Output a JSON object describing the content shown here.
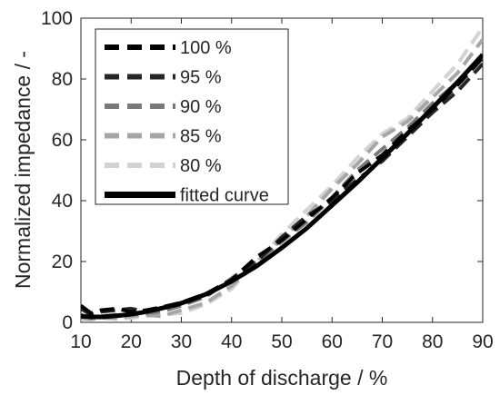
{
  "chart_data": {
    "type": "line",
    "xlabel": "Depth of discharge / %",
    "ylabel": "Normalized impedance / -",
    "xlim": [
      10,
      90
    ],
    "ylim": [
      0,
      100
    ],
    "xticks": [
      10,
      20,
      30,
      40,
      50,
      60,
      70,
      80,
      90
    ],
    "yticks": [
      0,
      20,
      40,
      60,
      80,
      100
    ],
    "grid": false,
    "legend_position": "top-left",
    "series": [
      {
        "name": "100 %",
        "color": "#000000",
        "style": "dashed",
        "x": [
          10,
          12,
          14,
          17,
          20,
          23,
          26,
          30,
          35,
          40,
          45,
          50,
          55,
          60,
          65,
          70,
          75,
          80,
          85,
          90
        ],
        "y": [
          5.5,
          3.0,
          4.0,
          4.5,
          3.5,
          4.0,
          5.0,
          6.5,
          9.5,
          14.0,
          21.5,
          27.0,
          34.0,
          41.0,
          49.0,
          55.0,
          63.0,
          70.0,
          78.0,
          87.0
        ]
      },
      {
        "name": "95 %",
        "color": "#262626",
        "style": "dashed",
        "x": [
          10,
          12,
          14,
          17,
          20,
          23,
          26,
          30,
          35,
          40,
          45,
          50,
          55,
          60,
          65,
          70,
          75,
          80,
          85,
          90
        ],
        "y": [
          4.5,
          2.5,
          3.5,
          4.0,
          4.5,
          3.5,
          4.5,
          6.0,
          9.0,
          13.5,
          20.0,
          28.0,
          35.0,
          40.0,
          47.0,
          53.0,
          61.0,
          69.0,
          76.0,
          85.0
        ]
      },
      {
        "name": "90 %",
        "color": "#7a7a7a",
        "style": "dashed",
        "x": [
          10,
          12,
          14,
          17,
          20,
          23,
          26,
          30,
          35,
          40,
          45,
          50,
          55,
          60,
          65,
          70,
          75,
          80,
          85,
          90
        ],
        "y": [
          2.5,
          1.5,
          2.0,
          2.5,
          2.5,
          3.0,
          3.5,
          5.5,
          8.5,
          14.5,
          20.0,
          26.5,
          33.0,
          41.0,
          50.0,
          57.0,
          64.0,
          72.0,
          79.0,
          88.0
        ]
      },
      {
        "name": "85 %",
        "color": "#a6a6a6",
        "style": "dashed",
        "x": [
          10,
          12,
          14,
          17,
          20,
          23,
          26,
          30,
          35,
          40,
          45,
          50,
          55,
          60,
          65,
          70,
          75,
          80,
          85,
          90
        ],
        "y": [
          1.5,
          1.0,
          1.5,
          1.5,
          2.0,
          2.5,
          2.0,
          4.0,
          6.5,
          12.0,
          19.5,
          27.5,
          35.0,
          44.0,
          52.0,
          61.0,
          66.0,
          74.0,
          82.0,
          93.0
        ]
      },
      {
        "name": "80 %",
        "color": "#d2d2d2",
        "style": "dashed",
        "x": [
          10,
          12,
          14,
          17,
          20,
          23,
          26,
          30,
          35,
          40,
          45,
          50,
          55,
          60,
          65,
          70,
          75,
          80,
          85,
          90
        ],
        "y": [
          1.0,
          1.0,
          1.5,
          1.0,
          1.5,
          2.0,
          2.5,
          3.0,
          6.0,
          11.0,
          20.0,
          29.0,
          37.0,
          45.0,
          54.0,
          62.0,
          67.0,
          76.0,
          85.0,
          97.0
        ]
      },
      {
        "name": "fitted curve",
        "color": "#000000",
        "style": "solid",
        "x": [
          10,
          12,
          14,
          16,
          18,
          20,
          22,
          25,
          30,
          35,
          40,
          45,
          50,
          55,
          60,
          65,
          70,
          75,
          80,
          85,
          90
        ],
        "y": [
          2.0,
          1.8,
          1.8,
          2.0,
          2.3,
          2.7,
          3.2,
          4.2,
          6.3,
          9.3,
          13.5,
          18.5,
          24.5,
          31.0,
          38.5,
          46.0,
          54.0,
          62.0,
          70.5,
          79.0,
          88.0
        ]
      }
    ]
  }
}
